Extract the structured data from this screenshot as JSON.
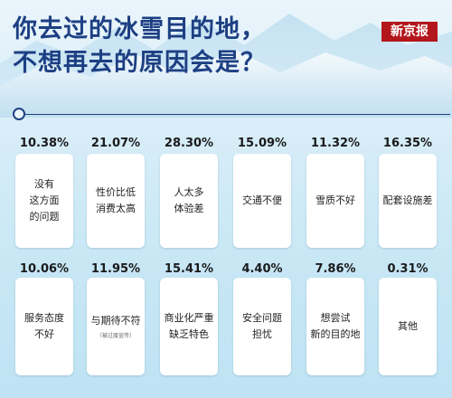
{
  "title": {
    "line1": "你去过的冰雪目的地，",
    "line2": "不想再去的原因会是？"
  },
  "brand": "新京报",
  "colors": {
    "title": "#1d3f83",
    "brand_bg": "#b3161b",
    "card_bg": "#ffffff"
  },
  "chart_data": {
    "type": "table",
    "unit": "%",
    "categories": [
      "没有这方面的问题",
      "性价比低消费太高",
      "人太多体验差",
      "交通不便",
      "雪质不好",
      "配套设施差",
      "服务态度不好",
      "与期待不符",
      "商业化严重缺乏特色",
      "安全问题担忧",
      "想尝试新的目的地",
      "其他"
    ],
    "values": [
      10.38,
      21.07,
      28.3,
      15.09,
      11.32,
      16.35,
      10.06,
      11.95,
      15.41,
      4.4,
      7.86,
      0.31
    ],
    "items": [
      {
        "pct": "10.38%",
        "label": "没有\n这方面\n的问题",
        "value": 10.38
      },
      {
        "pct": "21.07%",
        "label": "性价比低\n消费太高",
        "value": 21.07
      },
      {
        "pct": "28.30%",
        "label": "人太多\n体验差",
        "value": 28.3
      },
      {
        "pct": "15.09%",
        "label": "交通不便",
        "value": 15.09
      },
      {
        "pct": "11.32%",
        "label": "雪质不好",
        "value": 11.32
      },
      {
        "pct": "16.35%",
        "label": "配套设施差",
        "value": 16.35
      },
      {
        "pct": "10.06%",
        "label": "服务态度\n不好",
        "value": 10.06
      },
      {
        "pct": "11.95%",
        "label": "与期待不符",
        "sublabel": "（被过度宣传）",
        "value": 11.95
      },
      {
        "pct": "15.41%",
        "label": "商业化严重\n缺乏特色",
        "value": 15.41
      },
      {
        "pct": "4.40%",
        "label": "安全问题\n担忧",
        "value": 4.4
      },
      {
        "pct": "7.86%",
        "label": "想尝试\n新的目的地",
        "value": 7.86
      },
      {
        "pct": "0.31%",
        "label": "其他",
        "value": 0.31
      }
    ]
  }
}
